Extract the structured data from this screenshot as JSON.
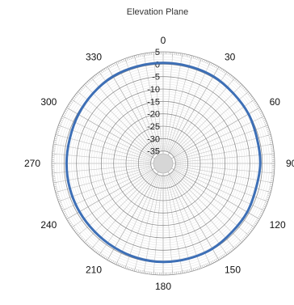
{
  "chart_data": {
    "type": "polar-line",
    "title": "Elevation Plane",
    "angle_labels": [
      "0",
      "30",
      "60",
      "90",
      "120",
      "150",
      "180",
      "210",
      "240",
      "270",
      "300",
      "330"
    ],
    "radial_labels": [
      "5",
      "0",
      "-5",
      "-10",
      "-15",
      "-20",
      "-25",
      "-30",
      "-35"
    ],
    "rlim": [
      -40,
      5
    ],
    "angle_start": "top",
    "angle_direction": "clockwise",
    "grid": true,
    "series": [
      {
        "color": "#3d6fb6",
        "angles": [
          0,
          15,
          30,
          45,
          60,
          75,
          90,
          105,
          120,
          135,
          150,
          165,
          180,
          195,
          210,
          225,
          240,
          255,
          270,
          285,
          300,
          315,
          330,
          345
        ],
        "values": [
          0.5,
          0.5,
          0.5,
          0.0,
          -0.2,
          -0.8,
          -0.8,
          -1.2,
          -0.8,
          -0.8,
          -0.3,
          -0.3,
          -0.3,
          -0.5,
          -0.8,
          -1.0,
          -1.0,
          -1.0,
          -1.0,
          -1.0,
          -0.5,
          0.0,
          0.5,
          0.5
        ]
      }
    ]
  }
}
